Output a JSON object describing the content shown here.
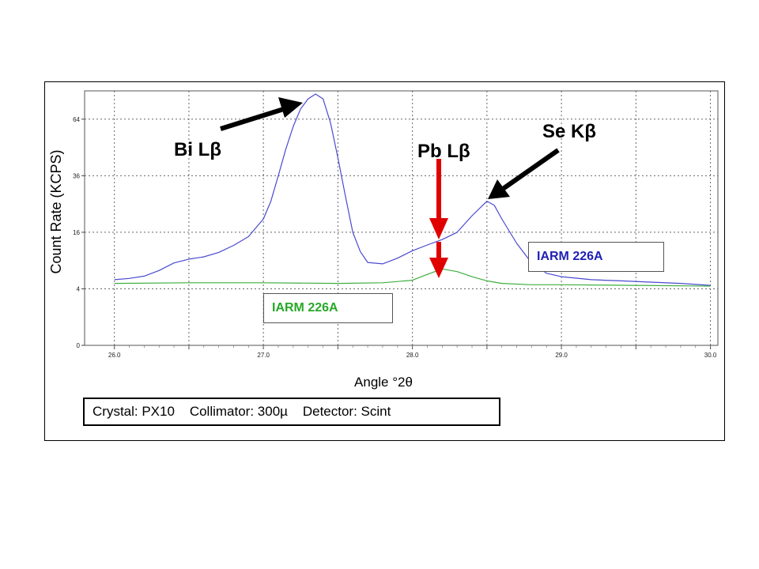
{
  "chart_data": {
    "type": "line",
    "ylabel": "Count Rate (KCPS)",
    "xlabel": "Angle °2θ",
    "x_ticks": [
      "26.0",
      "27.0",
      "28.0",
      "29.0",
      "30.0"
    ],
    "y_ticks": [
      "0",
      "4",
      "16",
      "36",
      "64"
    ],
    "xlim": [
      25.8,
      30.05
    ],
    "ylim": [
      0,
      81
    ],
    "y_scale": "sqrt",
    "grid": true,
    "series": [
      {
        "name": "IARM 226A",
        "color": "#4a4ad0",
        "x": [
          26.0,
          26.1,
          26.2,
          26.3,
          26.4,
          26.5,
          26.6,
          26.7,
          26.8,
          26.9,
          27.0,
          27.05,
          27.1,
          27.15,
          27.2,
          27.25,
          27.3,
          27.35,
          27.4,
          27.45,
          27.5,
          27.55,
          27.6,
          27.65,
          27.7,
          27.8,
          27.9,
          28.0,
          28.1,
          28.2,
          28.3,
          28.4,
          28.5,
          28.55,
          28.6,
          28.7,
          28.8,
          28.9,
          29.0,
          29.2,
          29.4,
          29.6,
          29.8,
          30.0
        ],
        "y": [
          5.4,
          5.6,
          6.0,
          7.0,
          8.5,
          9.3,
          9.8,
          10.8,
          12.5,
          14.8,
          20,
          26,
          36,
          48,
          60,
          70,
          76,
          79,
          76,
          62,
          44,
          28,
          16,
          11,
          8.6,
          8.3,
          9.5,
          11.2,
          12.6,
          14.0,
          16.0,
          21,
          26,
          24.5,
          20,
          13,
          8.5,
          6.5,
          5.9,
          5.4,
          5.2,
          5.0,
          4.8,
          4.5
        ]
      },
      {
        "name": "IARM 226A",
        "color": "#3fae3f",
        "x": [
          26.0,
          26.5,
          27.0,
          27.5,
          27.8,
          28.0,
          28.1,
          28.2,
          28.3,
          28.4,
          28.5,
          28.6,
          28.8,
          29.0,
          29.5,
          30.0
        ],
        "y": [
          4.8,
          4.9,
          4.9,
          4.8,
          4.9,
          5.3,
          6.3,
          7.3,
          6.8,
          5.9,
          5.2,
          4.8,
          4.6,
          4.6,
          4.5,
          4.4
        ]
      }
    ],
    "annotations": [
      {
        "text": "Bi Lβ",
        "color": "#000000"
      },
      {
        "text": "Pb Lβ",
        "color": "#e00000"
      },
      {
        "text": "Se Kβ",
        "color": "#000000"
      }
    ]
  },
  "legend": {
    "blue_label": "IARM 226A",
    "blue_color": "#1f1fb5",
    "green_label": "IARM 226A",
    "green_color": "#27a827"
  },
  "info": {
    "text": "Crystal: PX10    Collimator: 300µ    Detector: Scint"
  }
}
